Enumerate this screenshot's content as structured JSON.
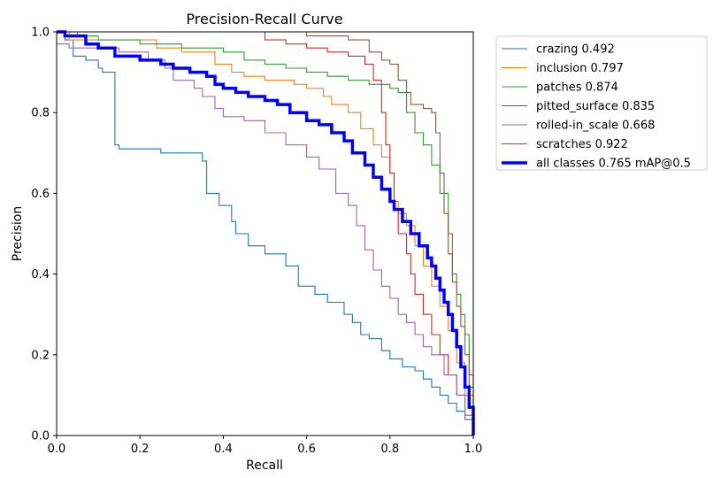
{
  "chart_data": {
    "type": "line",
    "title": "Precision-Recall Curve",
    "xlabel": "Recall",
    "ylabel": "Precision",
    "xlim": [
      0,
      1
    ],
    "ylim": [
      0,
      1
    ],
    "xticks": [
      "0.0",
      "0.2",
      "0.4",
      "0.6",
      "0.8",
      "1.0"
    ],
    "yticks": [
      "0.0",
      "0.2",
      "0.4",
      "0.6",
      "0.8",
      "1.0"
    ],
    "grid": false,
    "legend_position": "upper right, outside plot",
    "series": [
      {
        "name": "crazing 0.492",
        "color": "#1f77b4",
        "bold": false,
        "x": [
          0.0,
          0.02,
          0.04,
          0.07,
          0.1,
          0.11,
          0.14,
          0.15,
          0.18,
          0.25,
          0.3,
          0.35,
          0.36,
          0.39,
          0.42,
          0.43,
          0.46,
          0.5,
          0.55,
          0.58,
          0.62,
          0.65,
          0.69,
          0.71,
          0.73,
          0.75,
          0.78,
          0.8,
          0.83,
          0.86,
          0.88,
          0.9,
          0.92,
          0.94,
          0.96,
          0.98,
          1.0
        ],
        "y": [
          1.0,
          0.98,
          0.94,
          0.93,
          0.91,
          0.9,
          0.72,
          0.71,
          0.71,
          0.7,
          0.7,
          0.68,
          0.6,
          0.57,
          0.53,
          0.5,
          0.47,
          0.45,
          0.42,
          0.37,
          0.35,
          0.33,
          0.3,
          0.28,
          0.25,
          0.24,
          0.21,
          0.19,
          0.17,
          0.16,
          0.14,
          0.12,
          0.1,
          0.08,
          0.06,
          0.04,
          0.0
        ]
      },
      {
        "name": "inclusion 0.797",
        "color": "#ff7f0e",
        "bold": false,
        "x": [
          0.0,
          0.03,
          0.1,
          0.2,
          0.24,
          0.3,
          0.38,
          0.42,
          0.45,
          0.5,
          0.57,
          0.6,
          0.64,
          0.66,
          0.7,
          0.73,
          0.76,
          0.78,
          0.8,
          0.81,
          0.82,
          0.84,
          0.86,
          0.88,
          0.9,
          0.92,
          0.94,
          0.96,
          0.98,
          1.0
        ],
        "y": [
          1.0,
          0.98,
          0.98,
          0.98,
          0.96,
          0.95,
          0.92,
          0.9,
          0.89,
          0.88,
          0.87,
          0.86,
          0.84,
          0.82,
          0.8,
          0.76,
          0.72,
          0.69,
          0.65,
          0.58,
          0.55,
          0.52,
          0.47,
          0.42,
          0.37,
          0.32,
          0.26,
          0.18,
          0.1,
          0.0
        ]
      },
      {
        "name": "patches 0.874",
        "color": "#2ca02c",
        "bold": false,
        "x": [
          0.0,
          0.05,
          0.1,
          0.2,
          0.3,
          0.4,
          0.45,
          0.5,
          0.55,
          0.6,
          0.65,
          0.7,
          0.75,
          0.8,
          0.82,
          0.84,
          0.86,
          0.88,
          0.9,
          0.92,
          0.94,
          0.95,
          0.96,
          0.97,
          0.98,
          0.99,
          1.0
        ],
        "y": [
          1.0,
          0.99,
          0.98,
          0.97,
          0.96,
          0.95,
          0.93,
          0.92,
          0.91,
          0.9,
          0.89,
          0.88,
          0.87,
          0.86,
          0.85,
          0.8,
          0.75,
          0.72,
          0.67,
          0.6,
          0.5,
          0.4,
          0.35,
          0.3,
          0.25,
          0.15,
          0.0
        ]
      },
      {
        "name": "pitted_surface 0.835",
        "color": "#d62728",
        "bold": false,
        "x": [
          0.0,
          0.1,
          0.2,
          0.38,
          0.5,
          0.55,
          0.6,
          0.65,
          0.7,
          0.74,
          0.76,
          0.78,
          0.79,
          0.8,
          0.81,
          0.82,
          0.84,
          0.85,
          0.86,
          0.88,
          0.9,
          0.92,
          0.94,
          0.96,
          0.98,
          1.0
        ],
        "y": [
          1.0,
          1.0,
          1.0,
          1.0,
          0.98,
          0.97,
          0.96,
          0.95,
          0.94,
          0.92,
          0.88,
          0.8,
          0.72,
          0.65,
          0.56,
          0.5,
          0.45,
          0.4,
          0.35,
          0.3,
          0.25,
          0.2,
          0.15,
          0.1,
          0.05,
          0.0
        ]
      },
      {
        "name": "rolled-in_scale 0.668",
        "color": "#9467bd",
        "bold": false,
        "x": [
          0.0,
          0.03,
          0.08,
          0.15,
          0.22,
          0.26,
          0.28,
          0.33,
          0.35,
          0.38,
          0.4,
          0.45,
          0.5,
          0.55,
          0.6,
          0.63,
          0.67,
          0.7,
          0.72,
          0.74,
          0.76,
          0.78,
          0.8,
          0.82,
          0.84,
          0.86,
          0.88,
          0.9,
          0.93,
          0.96,
          0.98,
          1.0
        ],
        "y": [
          0.97,
          0.96,
          0.96,
          0.95,
          0.93,
          0.91,
          0.88,
          0.86,
          0.84,
          0.81,
          0.79,
          0.78,
          0.75,
          0.72,
          0.69,
          0.66,
          0.6,
          0.57,
          0.52,
          0.46,
          0.41,
          0.37,
          0.34,
          0.3,
          0.28,
          0.25,
          0.22,
          0.2,
          0.15,
          0.1,
          0.05,
          0.0
        ]
      },
      {
        "name": "scratches 0.922",
        "color": "#8c564b",
        "bold": false,
        "x": [
          0.0,
          0.3,
          0.5,
          0.6,
          0.7,
          0.75,
          0.78,
          0.8,
          0.82,
          0.84,
          0.85,
          0.86,
          0.88,
          0.9,
          0.91,
          0.92,
          0.93,
          0.94,
          0.95,
          0.96,
          0.97,
          0.98,
          0.99,
          1.0
        ],
        "y": [
          1.0,
          1.0,
          1.0,
          0.99,
          0.98,
          0.95,
          0.93,
          0.92,
          0.88,
          0.85,
          0.82,
          0.82,
          0.81,
          0.8,
          0.75,
          0.65,
          0.55,
          0.45,
          0.38,
          0.32,
          0.27,
          0.2,
          0.12,
          0.0
        ]
      },
      {
        "name": "all classes 0.765 mAP@0.5",
        "color": "#0000ff",
        "bold": true,
        "x": [
          0.0,
          0.02,
          0.07,
          0.1,
          0.14,
          0.2,
          0.25,
          0.28,
          0.32,
          0.36,
          0.38,
          0.4,
          0.43,
          0.46,
          0.5,
          0.53,
          0.56,
          0.6,
          0.63,
          0.66,
          0.69,
          0.71,
          0.74,
          0.76,
          0.78,
          0.8,
          0.81,
          0.83,
          0.85,
          0.87,
          0.89,
          0.9,
          0.91,
          0.92,
          0.93,
          0.94,
          0.95,
          0.96,
          0.97,
          0.98,
          0.99,
          1.0
        ],
        "y": [
          1.0,
          0.99,
          0.97,
          0.96,
          0.94,
          0.93,
          0.92,
          0.91,
          0.9,
          0.89,
          0.87,
          0.86,
          0.85,
          0.84,
          0.83,
          0.82,
          0.8,
          0.78,
          0.77,
          0.75,
          0.73,
          0.7,
          0.67,
          0.64,
          0.61,
          0.58,
          0.56,
          0.53,
          0.5,
          0.47,
          0.44,
          0.42,
          0.39,
          0.36,
          0.33,
          0.3,
          0.26,
          0.22,
          0.17,
          0.12,
          0.07,
          0.0
        ]
      }
    ]
  }
}
